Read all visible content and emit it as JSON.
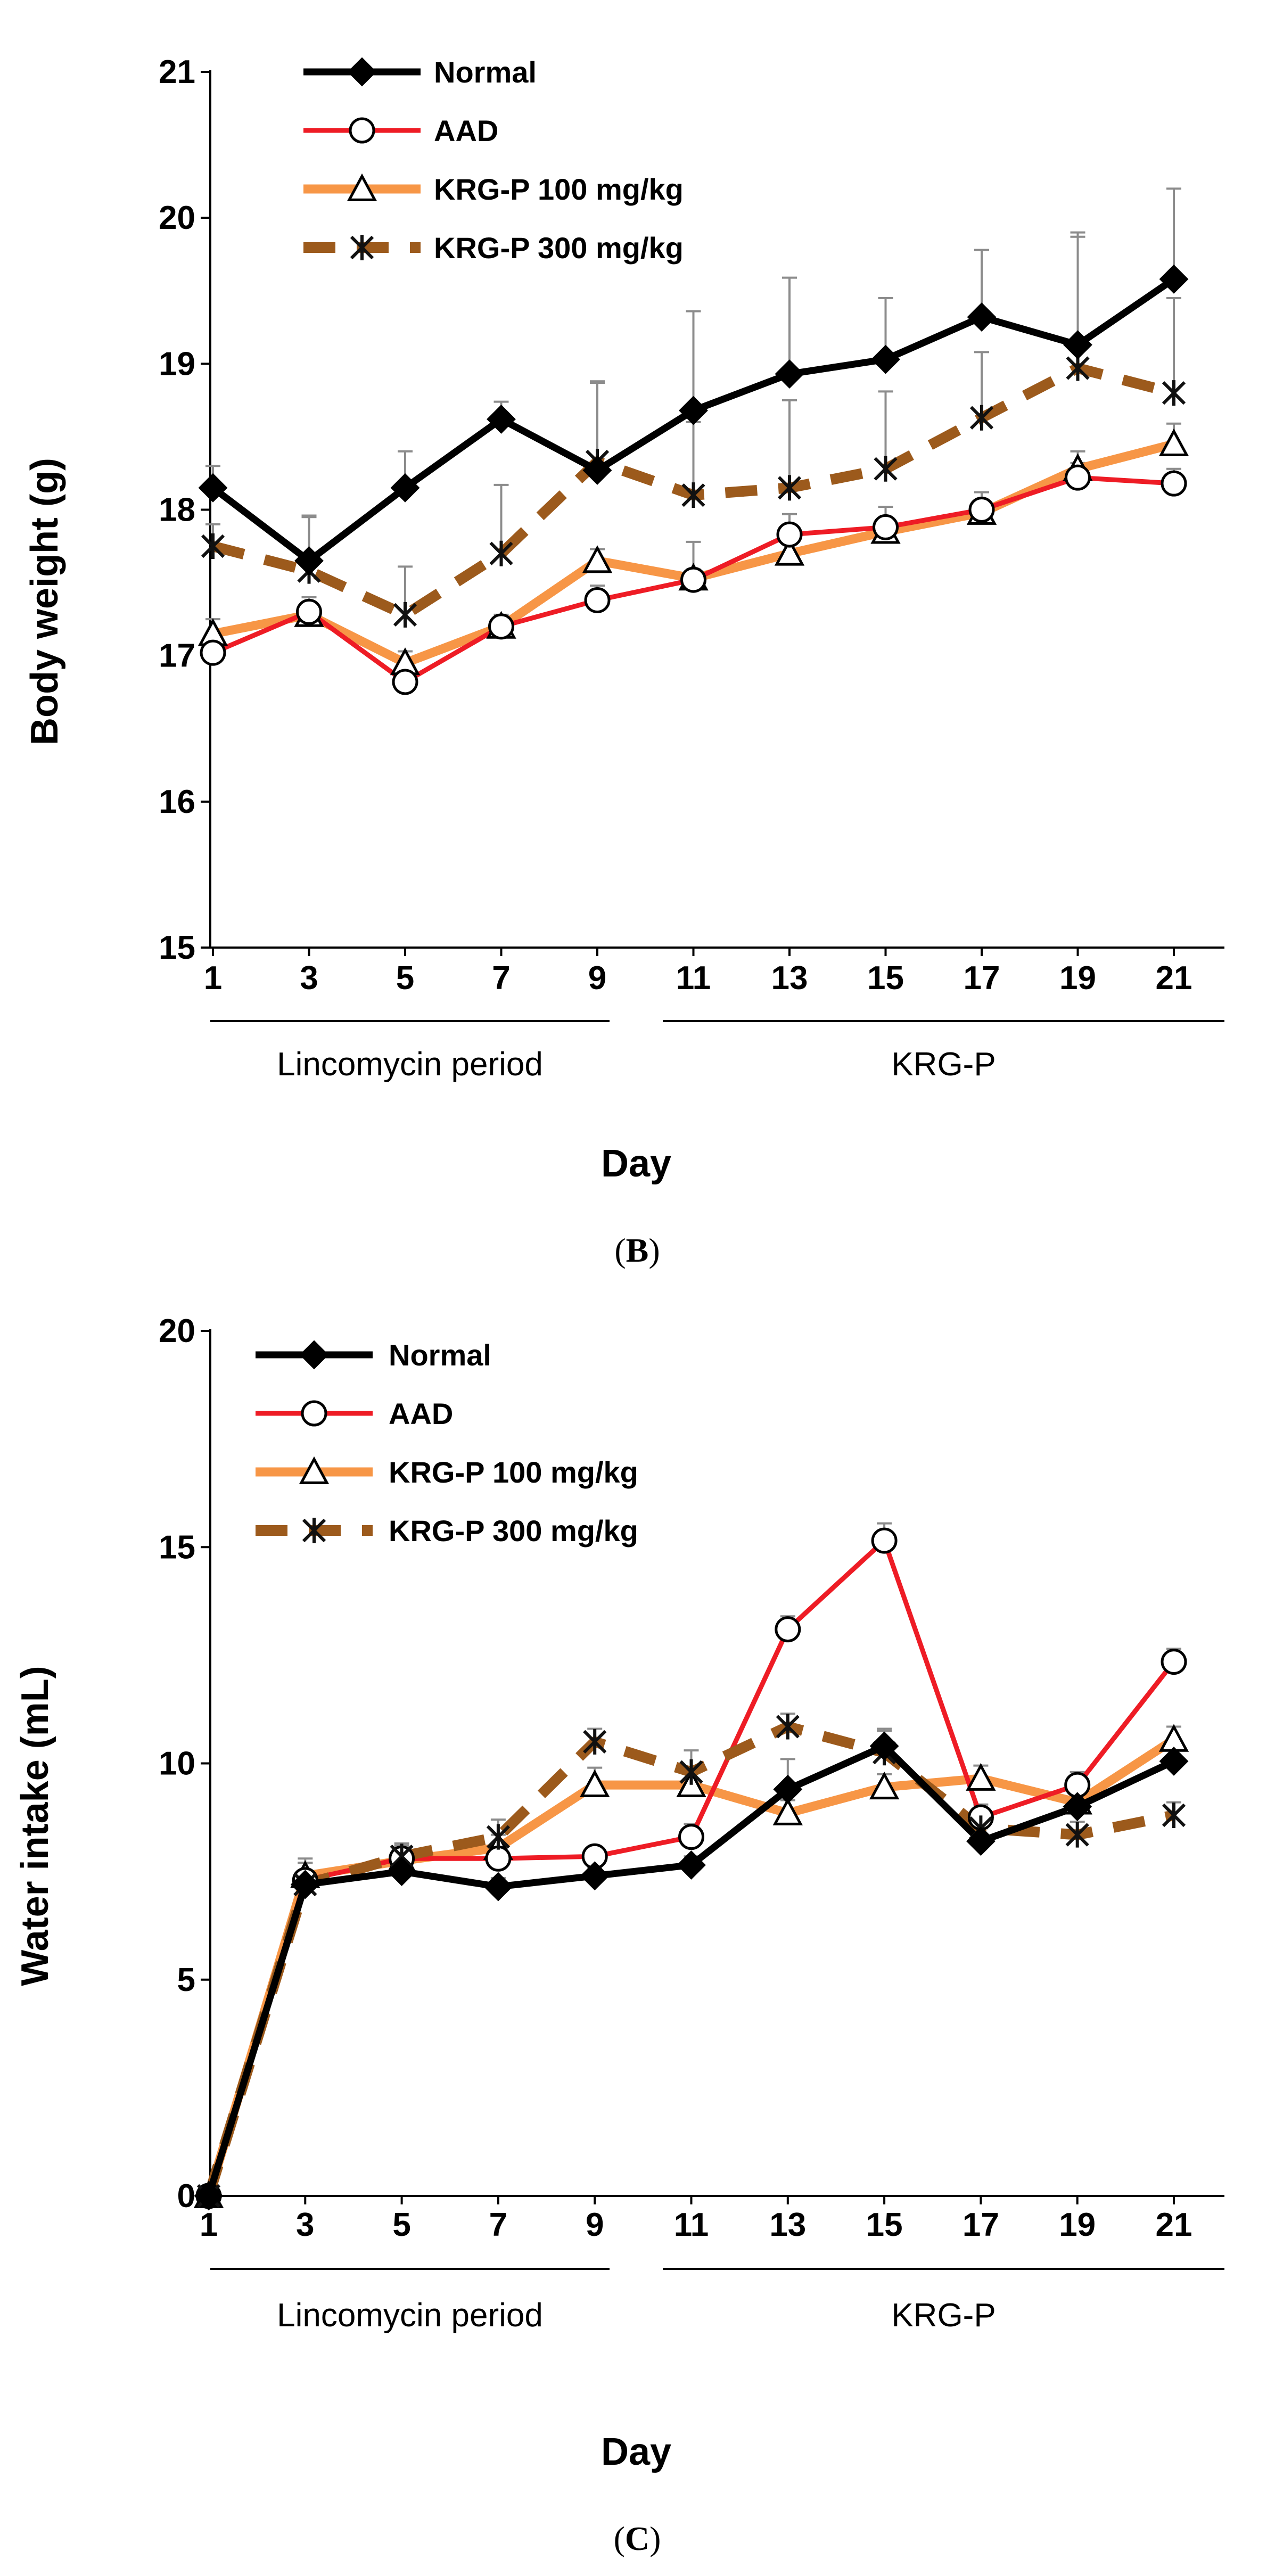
{
  "chart_data": [
    {
      "type": "line",
      "panel_label": {
        "open": "(",
        "letter": "B",
        "close": ")"
      },
      "ylabel": "Body weight (g)",
      "xlabel": "Day",
      "ylim": [
        15,
        21
      ],
      "yticks": [
        15,
        16,
        17,
        18,
        19,
        20,
        21
      ],
      "x": [
        1,
        3,
        5,
        7,
        9,
        11,
        13,
        15,
        17,
        19,
        21
      ],
      "x_tick_labels": [
        "1",
        "3",
        "5",
        "7",
        "9",
        "11",
        "13",
        "15",
        "17",
        "19",
        "21"
      ],
      "periods": [
        {
          "label": "Lincomycin period",
          "from": 1,
          "to": 10
        },
        {
          "label": "KRG-P",
          "from": 10,
          "to": 21
        }
      ],
      "series": [
        {
          "name": "Normal",
          "color": "#000000",
          "marker": "diamond",
          "values": [
            18.15,
            17.65,
            18.15,
            18.62,
            18.27,
            18.68,
            18.93,
            19.03,
            19.32,
            19.13,
            19.58
          ],
          "errors": [
            0.15,
            0.3,
            0.25,
            0.12,
            0.6,
            0.68,
            0.66,
            0.42,
            0.46,
            0.77,
            0.62
          ]
        },
        {
          "name": "AAD",
          "color": "#ee1c25",
          "marker": "circle",
          "values": [
            17.02,
            17.3,
            16.82,
            17.2,
            17.38,
            17.52,
            17.83,
            17.88,
            18.0,
            18.22,
            18.18
          ],
          "errors": [
            0.12,
            0.1,
            0.1,
            0.08,
            0.1,
            0.26,
            0.14,
            0.14,
            0.12,
            0.1,
            0.1
          ]
        },
        {
          "name": "KRG-P 100 mg/kg",
          "color": "#f79646",
          "marker": "triangle",
          "values": [
            17.15,
            17.28,
            16.95,
            17.2,
            17.65,
            17.53,
            17.7,
            17.85,
            17.98,
            18.28,
            18.45
          ],
          "errors": [
            0.1,
            0.12,
            0.08,
            0.06,
            0.08,
            0.06,
            0.1,
            0.08,
            0.08,
            0.12,
            0.14
          ]
        },
        {
          "name": "KRG-P 300 mg/kg",
          "color": "#9c5a1c",
          "marker": "asterisk",
          "values": [
            17.75,
            17.58,
            17.28,
            17.7,
            18.33,
            18.1,
            18.15,
            18.28,
            18.63,
            18.97,
            18.8
          ],
          "errors": [
            0.15,
            0.38,
            0.33,
            0.47,
            0.55,
            0.5,
            0.6,
            0.53,
            0.45,
            0.9,
            0.65
          ]
        }
      ]
    },
    {
      "type": "line",
      "panel_label": {
        "open": "(",
        "letter": "C",
        "close": ")"
      },
      "ylabel": "Water intake (mL)",
      "xlabel": "Day",
      "ylim": [
        0,
        20
      ],
      "yticks": [
        0,
        5,
        10,
        15,
        20
      ],
      "x": [
        1,
        3,
        5,
        7,
        9,
        11,
        13,
        15,
        17,
        19,
        21
      ],
      "x_tick_labels": [
        "1",
        "3",
        "5",
        "7",
        "9",
        "11",
        "13",
        "15",
        "17",
        "19",
        "21"
      ],
      "periods": [
        {
          "label": "Lincomycin period",
          "from": 1,
          "to": 10
        },
        {
          "label": "KRG-P",
          "from": 10,
          "to": 21
        }
      ],
      "series": [
        {
          "name": "Normal",
          "color": "#000000",
          "marker": "diamond",
          "values": [
            0,
            7.2,
            7.5,
            7.15,
            7.4,
            7.65,
            9.4,
            10.4,
            8.2,
            9.0,
            10.05
          ],
          "errors": [
            0,
            0.5,
            0.3,
            0.2,
            0.2,
            0.2,
            0.7,
            0.4,
            0.3,
            0.3,
            0.3
          ]
        },
        {
          "name": "AAD",
          "color": "#ee1c25",
          "marker": "circle",
          "values": [
            0,
            7.3,
            7.8,
            7.8,
            7.85,
            8.3,
            13.1,
            15.15,
            8.75,
            9.5,
            12.35
          ],
          "errors": [
            0,
            0.4,
            0.3,
            0.3,
            0.2,
            0.3,
            0.3,
            0.4,
            0.3,
            0.3,
            0.3
          ]
        },
        {
          "name": "KRG-P 100 mg/kg",
          "color": "#f79646",
          "marker": "triangle",
          "values": [
            0,
            7.4,
            7.75,
            8.05,
            9.5,
            9.5,
            8.85,
            9.45,
            9.65,
            9.1,
            10.55
          ],
          "errors": [
            0,
            0.4,
            0.3,
            0.3,
            0.4,
            0.4,
            0.3,
            0.3,
            0.3,
            0.3,
            0.3
          ]
        },
        {
          "name": "KRG-P 300 mg/kg",
          "color": "#9c5a1c",
          "marker": "asterisk",
          "values": [
            0,
            7.2,
            7.85,
            8.3,
            10.5,
            9.8,
            10.85,
            10.25,
            8.5,
            8.35,
            8.8
          ],
          "errors": [
            0,
            0.5,
            0.3,
            0.4,
            0.3,
            0.5,
            0.3,
            0.5,
            0.3,
            0.3,
            0.3
          ]
        }
      ]
    }
  ]
}
